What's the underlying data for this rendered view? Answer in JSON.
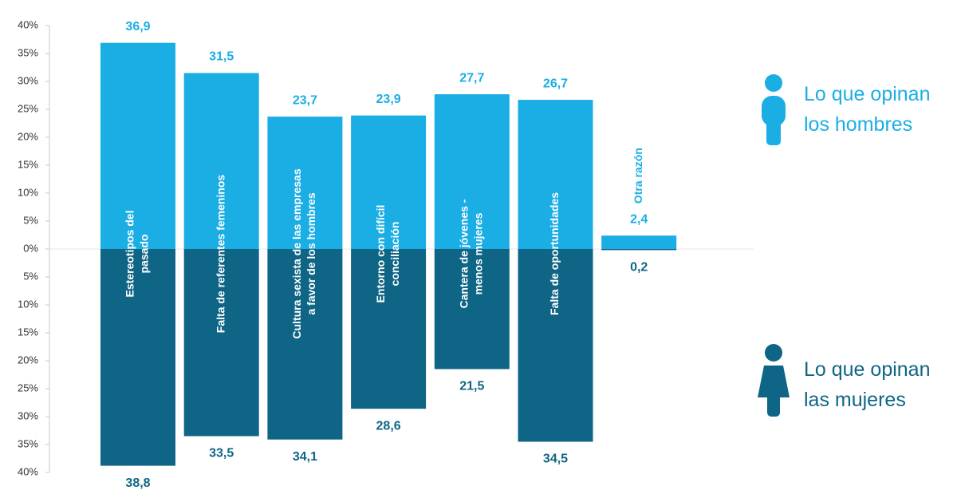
{
  "chart_data": {
    "type": "bar",
    "diverging": true,
    "categories": [
      [
        "Estereotipos del",
        "pasado"
      ],
      [
        "Falta de referentes femeninos"
      ],
      [
        "Cultura sexista de las empresas",
        "a favor de los hombres"
      ],
      [
        "Entorno con difícil",
        "conciliación"
      ],
      [
        "Cantera de jóvenes -",
        "menos mujeres"
      ],
      [
        "Falta de oportunidades"
      ],
      [
        "Otra razón"
      ]
    ],
    "series": [
      {
        "name": "Lo que opinan los hombres",
        "color": "#1aaee5",
        "direction": "up",
        "values": [
          36.9,
          31.5,
          23.7,
          23.9,
          27.7,
          26.7,
          2.4
        ],
        "value_labels": [
          "36,9",
          "31,5",
          "23,7",
          "23,9",
          "27,7",
          "26,7",
          "2,4"
        ]
      },
      {
        "name": "Lo que opinan las mujeres",
        "color": "#0f6585",
        "direction": "down",
        "values": [
          38.8,
          33.5,
          34.1,
          28.6,
          21.5,
          34.5,
          0.2
        ],
        "value_labels": [
          "38,8",
          "33,5",
          "34,1",
          "28,6",
          "21,5",
          "34,5",
          "0,2"
        ]
      }
    ],
    "ylim": [
      -40,
      40
    ],
    "yticks": [
      {
        "value": 40,
        "label": "40%"
      },
      {
        "value": 35,
        "label": "35%"
      },
      {
        "value": 30,
        "label": "30%"
      },
      {
        "value": 25,
        "label": "25%"
      },
      {
        "value": 20,
        "label": "20%"
      },
      {
        "value": 15,
        "label": "15%"
      },
      {
        "value": 10,
        "label": "10%"
      },
      {
        "value": 5,
        "label": "5%"
      },
      {
        "value": 0,
        "label": "0%"
      },
      {
        "value": -5,
        "label": "5%"
      },
      {
        "value": -10,
        "label": "10%"
      },
      {
        "value": -15,
        "label": "15%"
      },
      {
        "value": -20,
        "label": "20%"
      },
      {
        "value": -25,
        "label": "25%"
      },
      {
        "value": -30,
        "label": "30%"
      },
      {
        "value": -35,
        "label": "35%"
      },
      {
        "value": -40,
        "label": "40%"
      }
    ]
  }
}
